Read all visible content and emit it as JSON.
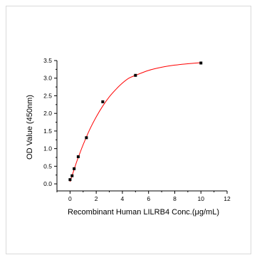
{
  "chart_data": {
    "type": "scatter",
    "title": "",
    "xlabel": "Recombinant Human LILRB4 Conc.(μg/mL)",
    "ylabel": "OD Value (450nm)",
    "xlim": [
      -1,
      12
    ],
    "ylim": [
      -0.2,
      3.5
    ],
    "x_ticks": [
      0,
      2,
      4,
      6,
      8,
      10,
      12
    ],
    "y_ticks": [
      0.0,
      0.5,
      1.0,
      1.5,
      2.0,
      2.5,
      3.0,
      3.5
    ],
    "x_tick_labels": [
      "0",
      "2",
      "4",
      "6",
      "8",
      "10",
      "12"
    ],
    "y_tick_labels": [
      "0.0",
      "0.5",
      "1.0",
      "1.5",
      "2.0",
      "2.5",
      "3.0",
      "3.5"
    ],
    "series": [
      {
        "marker_color": "#000000",
        "points": [
          {
            "x": 0.0,
            "y": 0.12
          },
          {
            "x": 0.156,
            "y": 0.23
          },
          {
            "x": 0.313,
            "y": 0.43
          },
          {
            "x": 0.625,
            "y": 0.77
          },
          {
            "x": 1.25,
            "y": 1.31
          },
          {
            "x": 2.5,
            "y": 2.33
          },
          {
            "x": 5.0,
            "y": 3.08
          },
          {
            "x": 10.0,
            "y": 3.43
          }
        ]
      }
    ],
    "fit_curve": {
      "color": "#ff0000",
      "points": [
        {
          "x": 0.0,
          "y": 0.06
        },
        {
          "x": 0.25,
          "y": 0.34
        },
        {
          "x": 0.5,
          "y": 0.62
        },
        {
          "x": 0.75,
          "y": 0.87
        },
        {
          "x": 1.0,
          "y": 1.11
        },
        {
          "x": 1.5,
          "y": 1.54
        },
        {
          "x": 2.0,
          "y": 1.9
        },
        {
          "x": 2.5,
          "y": 2.21
        },
        {
          "x": 3.0,
          "y": 2.47
        },
        {
          "x": 3.5,
          "y": 2.68
        },
        {
          "x": 4.0,
          "y": 2.86
        },
        {
          "x": 4.5,
          "y": 3.0
        },
        {
          "x": 5.0,
          "y": 3.08
        },
        {
          "x": 6.0,
          "y": 3.22
        },
        {
          "x": 7.0,
          "y": 3.31
        },
        {
          "x": 8.0,
          "y": 3.37
        },
        {
          "x": 9.0,
          "y": 3.41
        },
        {
          "x": 10.0,
          "y": 3.44
        }
      ]
    },
    "grid": false,
    "legend": "none"
  }
}
